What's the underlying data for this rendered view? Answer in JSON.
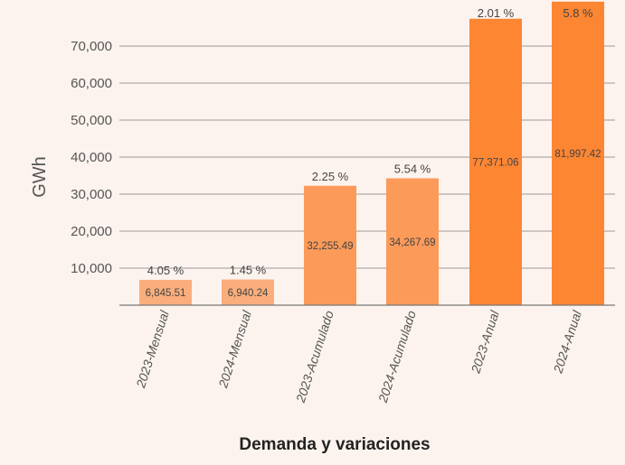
{
  "chart_data": {
    "type": "bar",
    "categories": [
      "2023-Mensual",
      "2024-Mensual",
      "2023-Acumulado",
      "2024-Acumulado",
      "2023-Anual",
      "2024-Anual"
    ],
    "values": [
      6845.51,
      6940.24,
      32255.49,
      34267.69,
      77371.06,
      81997.42
    ],
    "value_labels": [
      "6,845.51",
      "6,940.24",
      "32,255.49",
      "34,267.69",
      "77,371.06",
      "81,997.42"
    ],
    "variation_labels": [
      "4.05 %",
      "1.45 %",
      "2.25 %",
      "5.54 %",
      "2.01 %",
      "5.8 %"
    ],
    "bar_colors": [
      "#f9ae7c",
      "#f9ae7c",
      "#fc9a59",
      "#fc9a59",
      "#fd8633",
      "#fd8633"
    ],
    "xlabel": "Demanda y variaciones",
    "ylabel": "GWh",
    "ylim": [
      0,
      75000
    ],
    "yticks": [
      10000,
      20000,
      30000,
      40000,
      50000,
      60000,
      70000
    ],
    "ytick_labels": [
      "10,000",
      "20,000",
      "30,000",
      "40,000",
      "50,000",
      "60,000",
      "70,000"
    ],
    "grid": true,
    "legend": "none"
  }
}
